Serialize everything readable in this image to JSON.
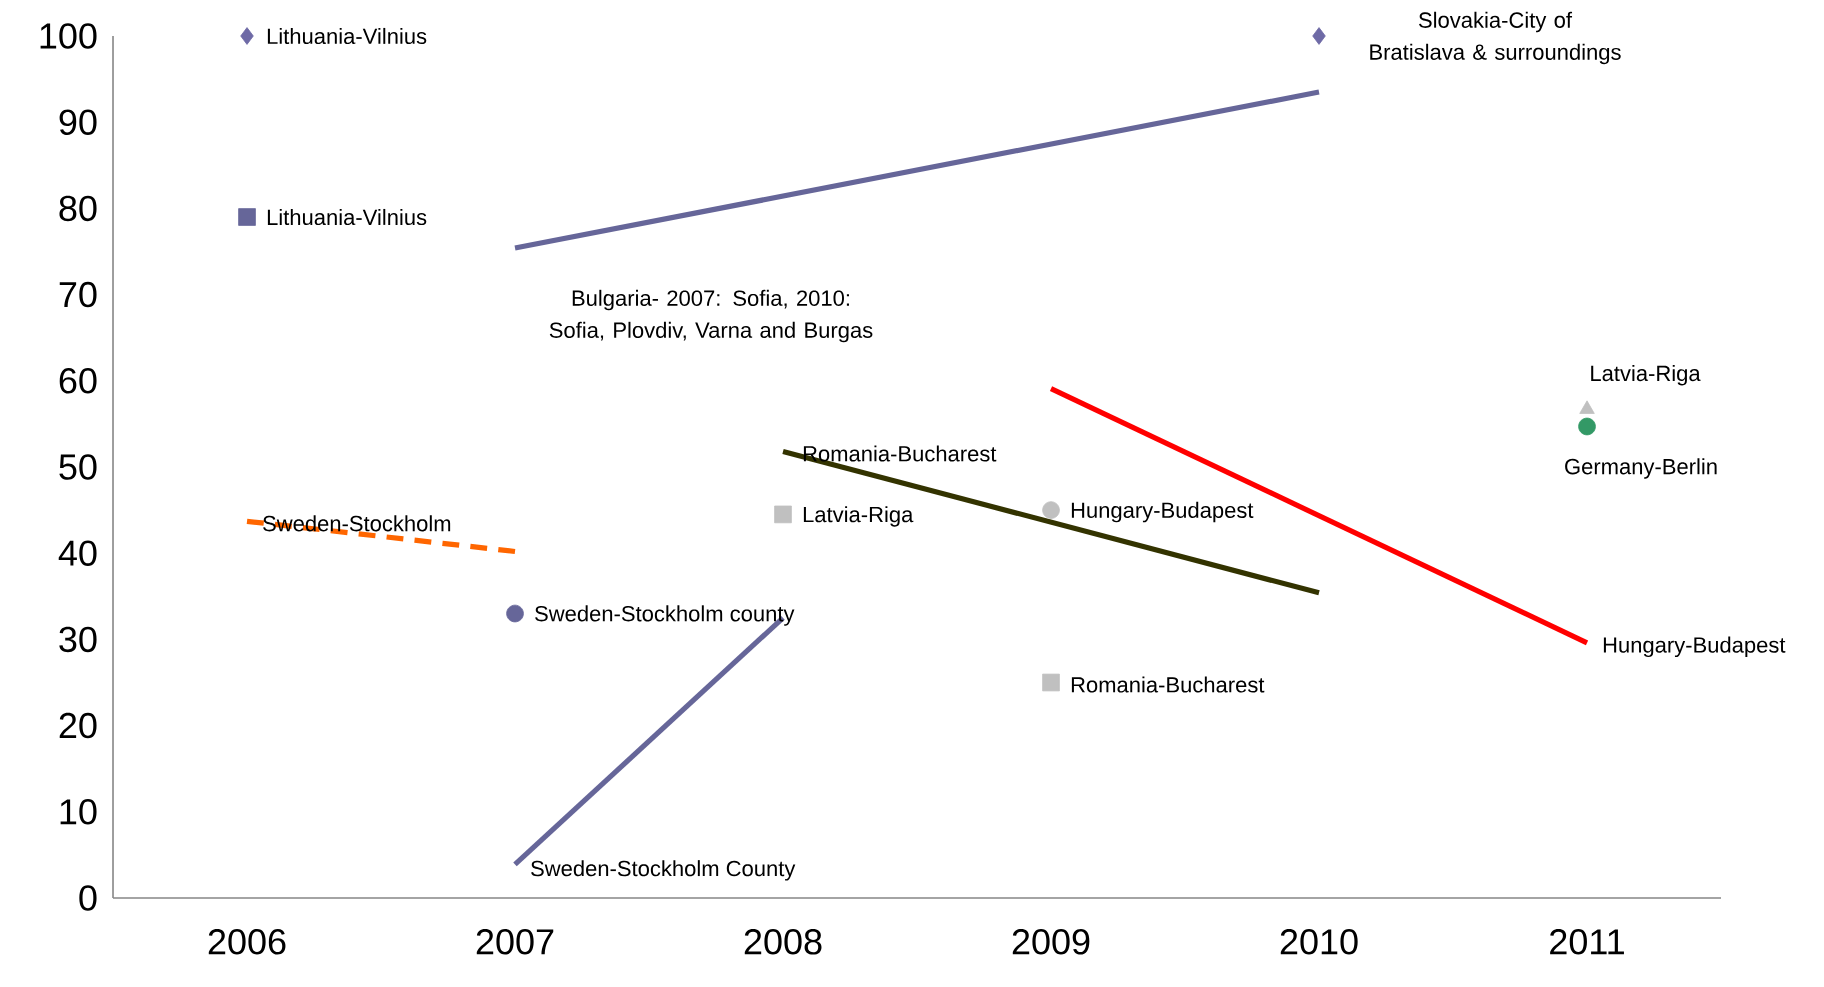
{
  "chart_data": {
    "type": "line",
    "xlim": [
      2005.5,
      2011.5
    ],
    "xticks": [
      2006,
      2007,
      2008,
      2009,
      2010,
      2011
    ],
    "ylim": [
      0,
      100
    ],
    "yticks": [
      0,
      10,
      20,
      30,
      40,
      50,
      60,
      70,
      80,
      90,
      100
    ],
    "series": [
      {
        "name": "Lithuania-Vilnius",
        "type": "scatter",
        "marker": "diamond",
        "color": "#6e6aa6",
        "x": [
          2006
        ],
        "values": [
          100
        ]
      },
      {
        "name": "Lithuania-Vilnius",
        "type": "scatter",
        "marker": "square",
        "color": "#666699",
        "x": [
          2006
        ],
        "values": [
          79
        ]
      },
      {
        "name": "Slovakia-City of Bratislava & surroundings",
        "type": "scatter",
        "marker": "diamond",
        "color": "#6e6aa6",
        "x": [
          2010
        ],
        "values": [
          100
        ]
      },
      {
        "name": "Bulgaria- 2007: Sofia, 2010: Sofia, Plovdiv, Varna and Burgas",
        "line_style": "solid",
        "color": "#666699",
        "x": [
          2007,
          2010
        ],
        "values": [
          75.4,
          93.5
        ]
      },
      {
        "name": "Sweden-Stockholm",
        "line_style": "dashed",
        "color": "#ff6600",
        "x": [
          2006,
          2007
        ],
        "values": [
          43.7,
          40.2
        ]
      },
      {
        "name": "Sweden-Stockholm county",
        "type": "scatter",
        "marker": "circle",
        "color": "#666699",
        "x": [
          2007
        ],
        "values": [
          33
        ]
      },
      {
        "name": "Sweden-Stockholm County",
        "line_style": "solid",
        "color": "#666699",
        "x": [
          2007,
          2008
        ],
        "values": [
          3.9,
          32.5
        ]
      },
      {
        "name": "Latvia-Riga",
        "type": "scatter",
        "marker": "square",
        "color": "#c0c0c0",
        "x": [
          2008
        ],
        "values": [
          44.5
        ]
      },
      {
        "name": "Romania-Bucharest",
        "line_style": "solid",
        "color": "#333300",
        "x": [
          2008,
          2010
        ],
        "values": [
          51.8,
          35.4
        ]
      },
      {
        "name": "Hungary-Budapest",
        "type": "scatter",
        "marker": "circle",
        "color": "#c0c0c0",
        "x": [
          2009
        ],
        "values": [
          45
        ]
      },
      {
        "name": "Romania-Bucharest",
        "type": "scatter",
        "marker": "square",
        "color": "#c0c0c0",
        "x": [
          2009
        ],
        "values": [
          25
        ]
      },
      {
        "name": "Hungary-Budapest",
        "line_style": "solid",
        "color": "#ff0000",
        "x": [
          2009,
          2011
        ],
        "values": [
          59.1,
          29.6
        ]
      },
      {
        "name": "Latvia-Riga",
        "type": "scatter",
        "marker": "triangle",
        "color": "#c0c0c0",
        "x": [
          2011
        ],
        "values": [
          56.7
        ]
      },
      {
        "name": "Germany-Berlin",
        "type": "scatter",
        "marker": "circle",
        "color": "#339966",
        "x": [
          2011
        ],
        "values": [
          54.7
        ]
      }
    ]
  }
}
